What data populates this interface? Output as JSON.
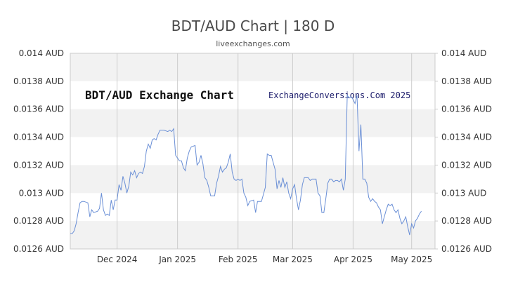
{
  "page": {
    "title": "BDT/AUD Chart | 180 D",
    "source": "liveexchanges.com",
    "overlay_title": "BDT/AUD Exchange Chart",
    "overlay_credit": "ExchangeConversions.Com 2025"
  },
  "colors": {
    "line": "#6a8fd6",
    "band": "#f2f2f2",
    "grid": "#cccccc",
    "border": "#cccccc"
  },
  "chart_data": {
    "type": "line",
    "title": "BDT/AUD Chart | 180 D",
    "xlabel": "",
    "ylabel": "",
    "ylim": [
      0.0126,
      0.014
    ],
    "y_ticks": [
      0.0126,
      0.0128,
      0.013,
      0.0132,
      0.0134,
      0.0136,
      0.0138,
      0.014
    ],
    "y_tick_labels": [
      "0.0126 AUD",
      "0.0128 AUD",
      "0.013 AUD",
      "0.0132 AUD",
      "0.0134 AUD",
      "0.0136 AUD",
      "0.0138 AUD",
      "0.014 AUD"
    ],
    "x_range": [
      "2024-11-07",
      "2025-05-13"
    ],
    "x_ticks": [
      {
        "date": "2024-12-01",
        "label": "Dec 2024"
      },
      {
        "date": "2025-01-01",
        "label": "Jan 2025"
      },
      {
        "date": "2025-02-01",
        "label": "Feb 2025"
      },
      {
        "date": "2025-03-01",
        "label": "Mar 2025"
      },
      {
        "date": "2025-04-01",
        "label": "Apr 2025"
      },
      {
        "date": "2025-05-01",
        "label": "May 2025"
      }
    ],
    "grid": true,
    "series": [
      {
        "points": [
          [
            "2024-11-07",
            0.01271
          ],
          [
            "2024-11-08",
            0.01271
          ],
          [
            "2024-11-09",
            0.01273
          ],
          [
            "2024-11-10",
            0.01278
          ],
          [
            "2024-11-11",
            0.01286
          ],
          [
            "2024-11-12",
            0.01293
          ],
          [
            "2024-11-13",
            0.01294
          ],
          [
            "2024-11-14",
            0.01294
          ],
          [
            "2024-11-16",
            0.01293
          ],
          [
            "2024-11-17",
            0.01283
          ],
          [
            "2024-11-18",
            0.01288
          ],
          [
            "2024-11-19",
            0.01286
          ],
          [
            "2024-11-21",
            0.01287
          ],
          [
            "2024-11-22",
            0.01289
          ],
          [
            "2024-11-23",
            0.013
          ],
          [
            "2024-11-24",
            0.01288
          ],
          [
            "2024-11-25",
            0.01284
          ],
          [
            "2024-11-26",
            0.01285
          ],
          [
            "2024-11-27",
            0.01284
          ],
          [
            "2024-11-28",
            0.01295
          ],
          [
            "2024-11-29",
            0.01288
          ],
          [
            "2024-11-30",
            0.01295
          ],
          [
            "2024-12-01",
            0.01295
          ],
          [
            "2024-12-02",
            0.01306
          ],
          [
            "2024-12-03",
            0.01302
          ],
          [
            "2024-12-04",
            0.01312
          ],
          [
            "2024-12-05",
            0.01307
          ],
          [
            "2024-12-06",
            0.013
          ],
          [
            "2024-12-07",
            0.01305
          ],
          [
            "2024-12-08",
            0.01315
          ],
          [
            "2024-12-09",
            0.01313
          ],
          [
            "2024-12-10",
            0.01316
          ],
          [
            "2024-12-11",
            0.01311
          ],
          [
            "2024-12-12",
            0.01314
          ],
          [
            "2024-12-13",
            0.01315
          ],
          [
            "2024-12-14",
            0.01314
          ],
          [
            "2024-12-15",
            0.01319
          ],
          [
            "2024-12-16",
            0.0133
          ],
          [
            "2024-12-17",
            0.01335
          ],
          [
            "2024-12-18",
            0.01332
          ],
          [
            "2024-12-19",
            0.01338
          ],
          [
            "2024-12-20",
            0.01339
          ],
          [
            "2024-12-21",
            0.01338
          ],
          [
            "2024-12-22",
            0.01342
          ],
          [
            "2024-12-23",
            0.01345
          ],
          [
            "2024-12-25",
            0.01345
          ],
          [
            "2024-12-27",
            0.01344
          ],
          [
            "2024-12-28",
            0.01345
          ],
          [
            "2024-12-29",
            0.01344
          ],
          [
            "2024-12-30",
            0.01346
          ],
          [
            "2024-12-31",
            0.01327
          ],
          [
            "2025-01-02",
            0.01323
          ],
          [
            "2025-01-03",
            0.01323
          ],
          [
            "2025-01-04",
            0.01318
          ],
          [
            "2025-01-05",
            0.01316
          ],
          [
            "2025-01-06",
            0.01325
          ],
          [
            "2025-01-07",
            0.0133
          ],
          [
            "2025-01-08",
            0.01333
          ],
          [
            "2025-01-10",
            0.01334
          ],
          [
            "2025-01-11",
            0.0132
          ],
          [
            "2025-01-12",
            0.01322
          ],
          [
            "2025-01-13",
            0.01327
          ],
          [
            "2025-01-14",
            0.01321
          ],
          [
            "2025-01-15",
            0.01311
          ],
          [
            "2025-01-16",
            0.01309
          ],
          [
            "2025-01-17",
            0.01304
          ],
          [
            "2025-01-18",
            0.01298
          ],
          [
            "2025-01-20",
            0.01298
          ],
          [
            "2025-01-21",
            0.01307
          ],
          [
            "2025-01-22",
            0.01312
          ],
          [
            "2025-01-23",
            0.01319
          ],
          [
            "2025-01-24",
            0.01315
          ],
          [
            "2025-01-25",
            0.01317
          ],
          [
            "2025-01-26",
            0.01318
          ],
          [
            "2025-01-27",
            0.01322
          ],
          [
            "2025-01-28",
            0.01328
          ],
          [
            "2025-01-29",
            0.01315
          ],
          [
            "2025-01-30",
            0.0131
          ],
          [
            "2025-01-31",
            0.01309
          ],
          [
            "2025-02-01",
            0.0131
          ],
          [
            "2025-02-02",
            0.01309
          ],
          [
            "2025-02-03",
            0.0131
          ],
          [
            "2025-02-04",
            0.013
          ],
          [
            "2025-02-05",
            0.01297
          ],
          [
            "2025-02-06",
            0.01291
          ],
          [
            "2025-02-07",
            0.01294
          ],
          [
            "2025-02-09",
            0.01295
          ],
          [
            "2025-02-10",
            0.01286
          ],
          [
            "2025-02-11",
            0.01294
          ],
          [
            "2025-02-13",
            0.01294
          ],
          [
            "2025-02-14",
            0.01299
          ],
          [
            "2025-02-15",
            0.01304
          ],
          [
            "2025-02-16",
            0.01328
          ],
          [
            "2025-02-17",
            0.01327
          ],
          [
            "2025-02-18",
            0.01327
          ],
          [
            "2025-02-19",
            0.01322
          ],
          [
            "2025-02-20",
            0.01317
          ],
          [
            "2025-02-21",
            0.01303
          ],
          [
            "2025-02-22",
            0.01309
          ],
          [
            "2025-02-23",
            0.01304
          ],
          [
            "2025-02-24",
            0.01311
          ],
          [
            "2025-02-25",
            0.01304
          ],
          [
            "2025-02-26",
            0.01308
          ],
          [
            "2025-02-27",
            0.013
          ],
          [
            "2025-02-28",
            0.01296
          ],
          [
            "2025-03-01",
            0.01303
          ],
          [
            "2025-03-02",
            0.01306
          ],
          [
            "2025-03-03",
            0.01296
          ],
          [
            "2025-03-04",
            0.01288
          ],
          [
            "2025-03-05",
            0.01295
          ],
          [
            "2025-03-06",
            0.01306
          ],
          [
            "2025-03-07",
            0.01311
          ],
          [
            "2025-03-08",
            0.01311
          ],
          [
            "2025-03-09",
            0.01311
          ],
          [
            "2025-03-10",
            0.01309
          ],
          [
            "2025-03-11",
            0.0131
          ],
          [
            "2025-03-12",
            0.0131
          ],
          [
            "2025-03-13",
            0.0131
          ],
          [
            "2025-03-14",
            0.013
          ],
          [
            "2025-03-15",
            0.01298
          ],
          [
            "2025-03-16",
            0.01286
          ],
          [
            "2025-03-17",
            0.01286
          ],
          [
            "2025-03-18",
            0.01296
          ],
          [
            "2025-03-19",
            0.01307
          ],
          [
            "2025-03-20",
            0.0131
          ],
          [
            "2025-03-21",
            0.0131
          ],
          [
            "2025-03-22",
            0.01308
          ],
          [
            "2025-03-23",
            0.01309
          ],
          [
            "2025-03-24",
            0.01309
          ],
          [
            "2025-03-25",
            0.01308
          ],
          [
            "2025-03-26",
            0.0131
          ],
          [
            "2025-03-27",
            0.01302
          ],
          [
            "2025-03-28",
            0.0131
          ],
          [
            "2025-03-29",
            0.0137
          ],
          [
            "2025-03-30",
            0.01368
          ],
          [
            "2025-03-31",
            0.01369
          ],
          [
            "2025-04-01",
            0.01367
          ],
          [
            "2025-04-02",
            0.01364
          ],
          [
            "2025-04-03",
            0.0137
          ],
          [
            "2025-04-04",
            0.0133
          ],
          [
            "2025-04-05",
            0.01349
          ],
          [
            "2025-04-06",
            0.0131
          ],
          [
            "2025-04-07",
            0.0131
          ],
          [
            "2025-04-08",
            0.01307
          ],
          [
            "2025-04-09",
            0.01297
          ],
          [
            "2025-04-10",
            0.01294
          ],
          [
            "2025-04-11",
            0.01296
          ],
          [
            "2025-04-12",
            0.01294
          ],
          [
            "2025-04-13",
            0.01293
          ],
          [
            "2025-04-14",
            0.0129
          ],
          [
            "2025-04-15",
            0.01288
          ],
          [
            "2025-04-16",
            0.01278
          ],
          [
            "2025-04-17",
            0.01283
          ],
          [
            "2025-04-18",
            0.01288
          ],
          [
            "2025-04-19",
            0.01292
          ],
          [
            "2025-04-20",
            0.01291
          ],
          [
            "2025-04-21",
            0.01292
          ],
          [
            "2025-04-22",
            0.01288
          ],
          [
            "2025-04-23",
            0.01286
          ],
          [
            "2025-04-24",
            0.01288
          ],
          [
            "2025-04-25",
            0.01282
          ],
          [
            "2025-04-26",
            0.01278
          ],
          [
            "2025-04-27",
            0.0128
          ],
          [
            "2025-04-28",
            0.01283
          ],
          [
            "2025-04-29",
            0.01276
          ],
          [
            "2025-04-30",
            0.0127
          ],
          [
            "2025-05-01",
            0.01278
          ],
          [
            "2025-05-02",
            0.01275
          ],
          [
            "2025-05-03",
            0.0128
          ],
          [
            "2025-05-04",
            0.01282
          ],
          [
            "2025-05-05",
            0.01285
          ],
          [
            "2025-05-06",
            0.01287
          ]
        ]
      }
    ]
  }
}
